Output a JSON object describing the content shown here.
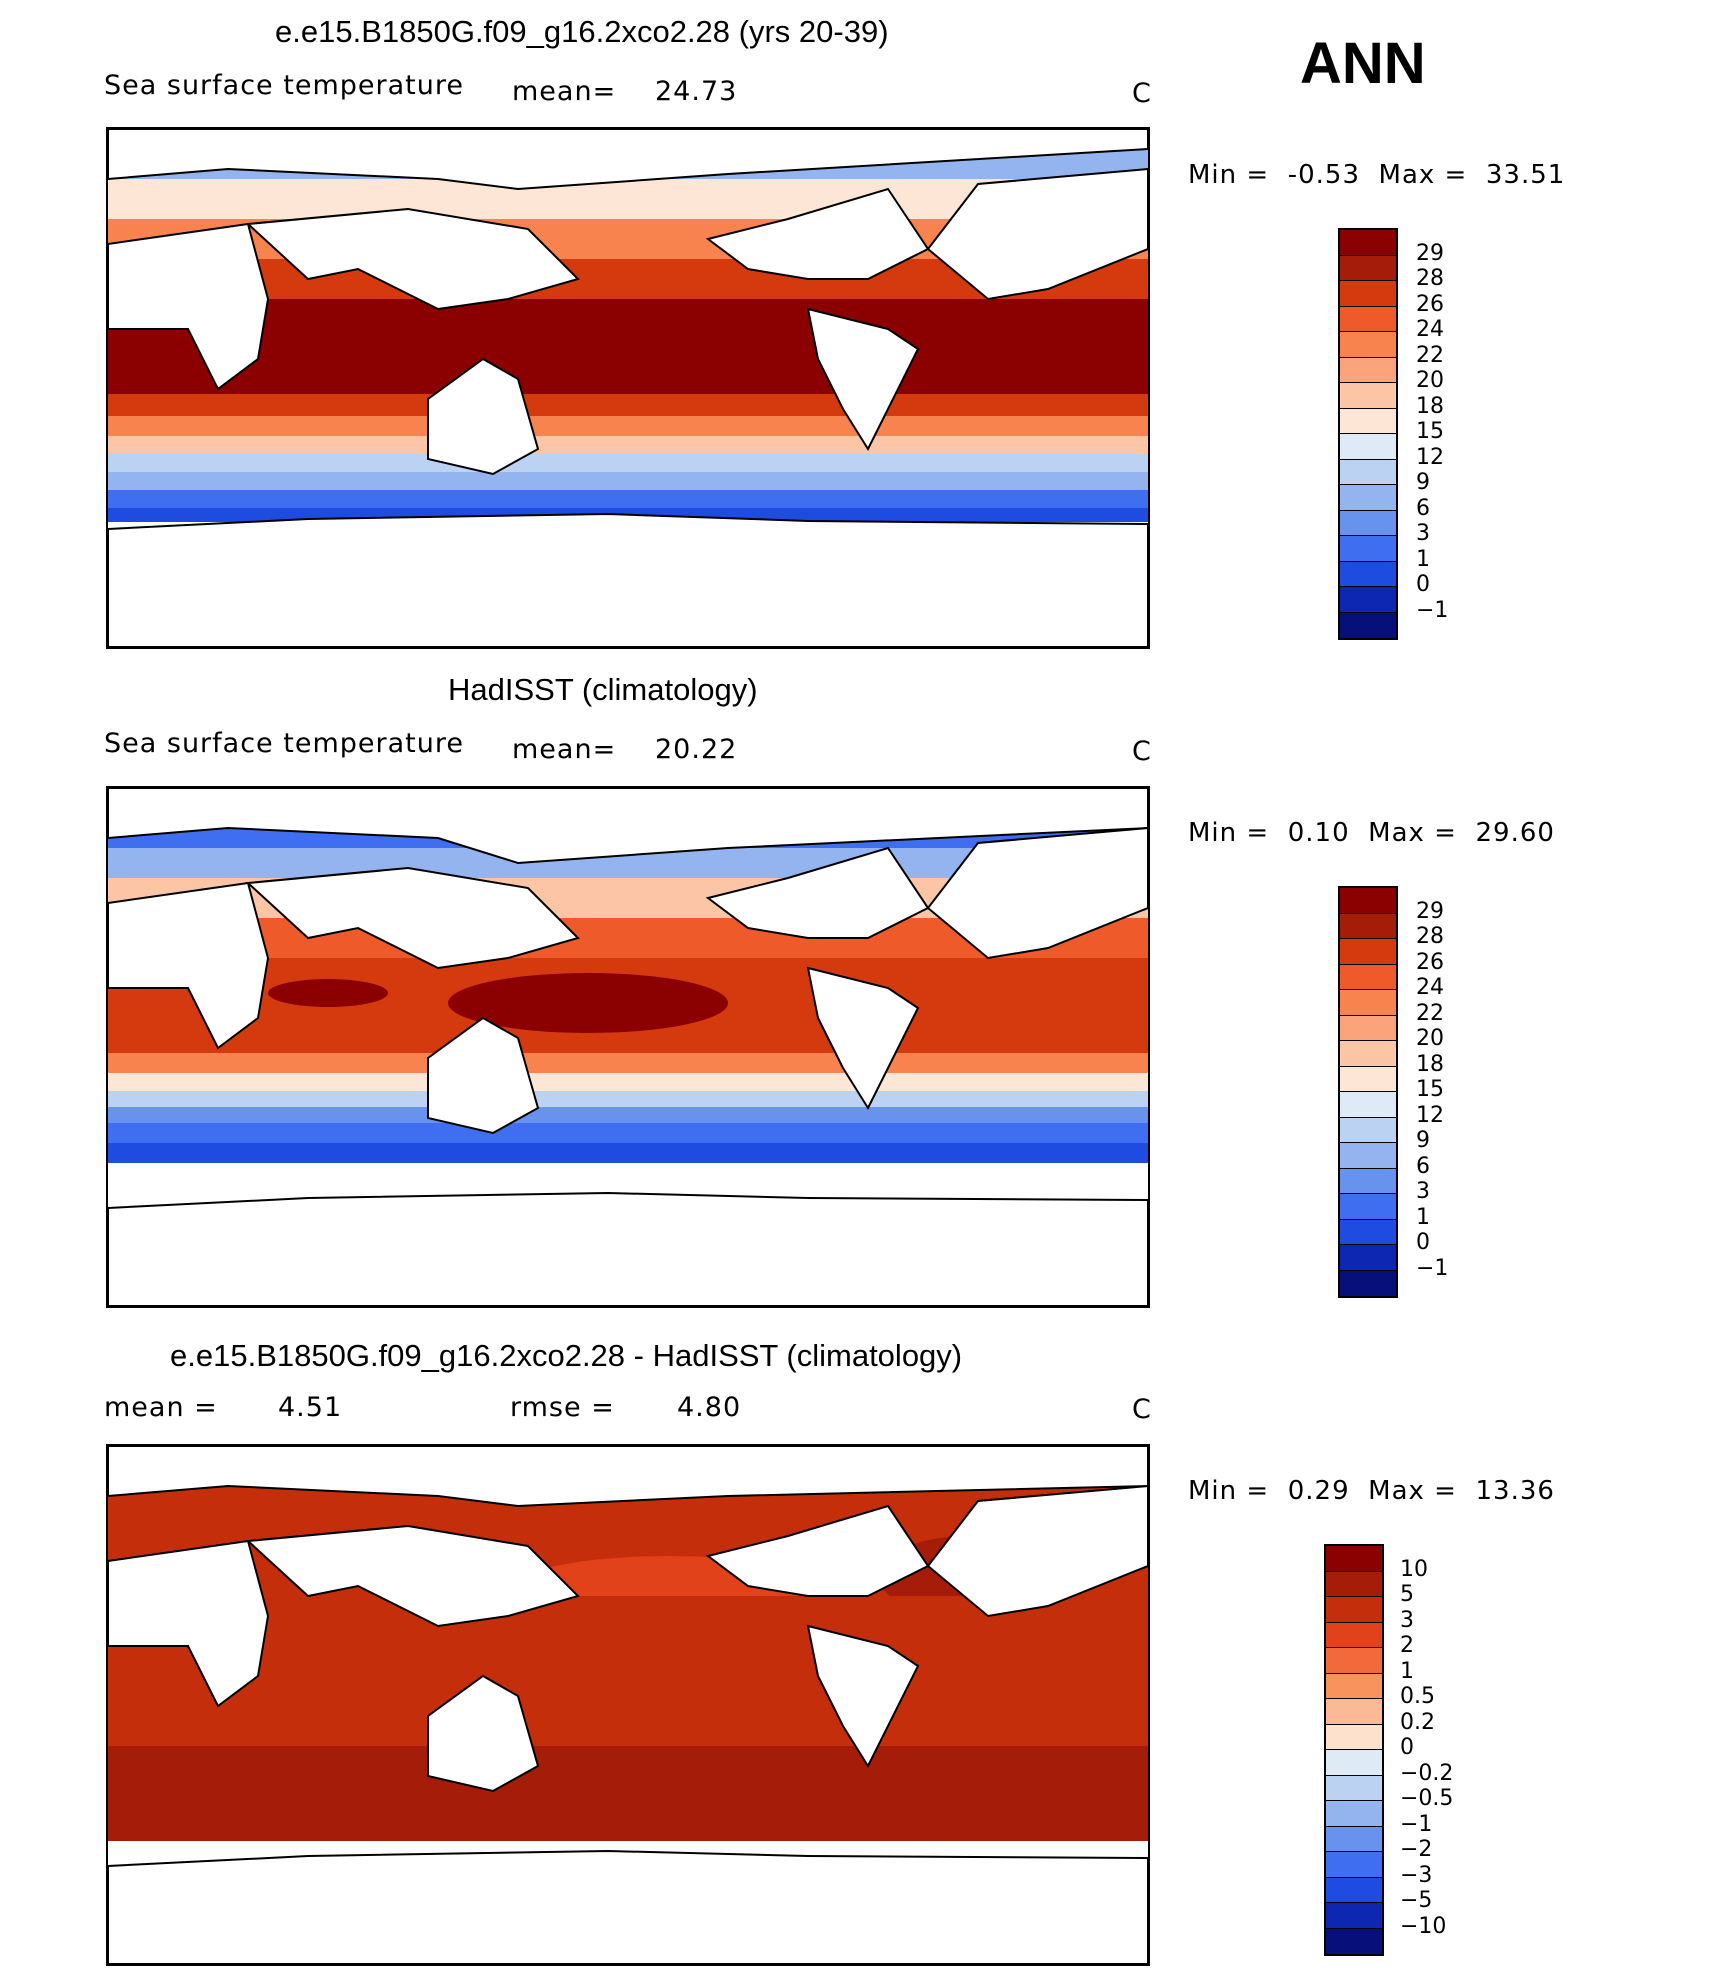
{
  "season": "ANN",
  "panels": [
    {
      "title": "e.e15.B1850G.f09_g16.2xco2.28 (yrs 20-39)",
      "left_label": "Sea surface temperature",
      "mean_label": "mean=",
      "mean_value": "24.73",
      "units": "C",
      "min_label": "Min =",
      "min_value": "-0.53",
      "max_label": "Max =",
      "max_value": "33.51",
      "colorbar_ticks": [
        "29",
        "28",
        "26",
        "24",
        "22",
        "20",
        "18",
        "15",
        "12",
        "9",
        "6",
        "3",
        "1",
        "0",
        "−1"
      ]
    },
    {
      "title": "HadISST (climatology)",
      "left_label": "Sea surface temperature",
      "mean_label": "mean=",
      "mean_value": "20.22",
      "units": "C",
      "min_label": "Min =",
      "min_value": "0.10",
      "max_label": "Max =",
      "max_value": "29.60",
      "colorbar_ticks": [
        "29",
        "28",
        "26",
        "24",
        "22",
        "20",
        "18",
        "15",
        "12",
        "9",
        "6",
        "3",
        "1",
        "0",
        "−1"
      ]
    },
    {
      "title": "e.e15.B1850G.f09_g16.2xco2.28 - HadISST (climatology)",
      "left_label": "mean =",
      "left_value": "4.51",
      "rmse_label": "rmse =",
      "rmse_value": "4.80",
      "units": "C",
      "min_label": "Min =",
      "min_value": "0.29",
      "max_label": "Max =",
      "max_value": "13.36",
      "colorbar_ticks": [
        "10",
        "5",
        "3",
        "2",
        "1",
        "0.5",
        "0.2",
        "0",
        "−0.2",
        "−0.5",
        "−1",
        "−2",
        "−3",
        "−5",
        "−10"
      ]
    }
  ],
  "colors": {
    "sst_scale": [
      "#8b0000",
      "#a51c08",
      "#d43a0e",
      "#ef5a2a",
      "#f8834f",
      "#fba47c",
      "#fcc5a6",
      "#fde6d6",
      "#dfeaf7",
      "#bcd2f3",
      "#93b4ef",
      "#6793ee",
      "#3f6ef0",
      "#1e4be0",
      "#0d27b3",
      "#07107a"
    ],
    "diff_scale": [
      "#8b0000",
      "#a51c08",
      "#c52e0a",
      "#e2421a",
      "#f26a3c",
      "#f8935e",
      "#fbb995",
      "#fde1cd",
      "#dfeaf7",
      "#bcd2f3",
      "#93b4ef",
      "#6793ee",
      "#3f6ef0",
      "#1e4be0",
      "#0d27b3",
      "#07107a"
    ],
    "land": "#ffffff"
  }
}
